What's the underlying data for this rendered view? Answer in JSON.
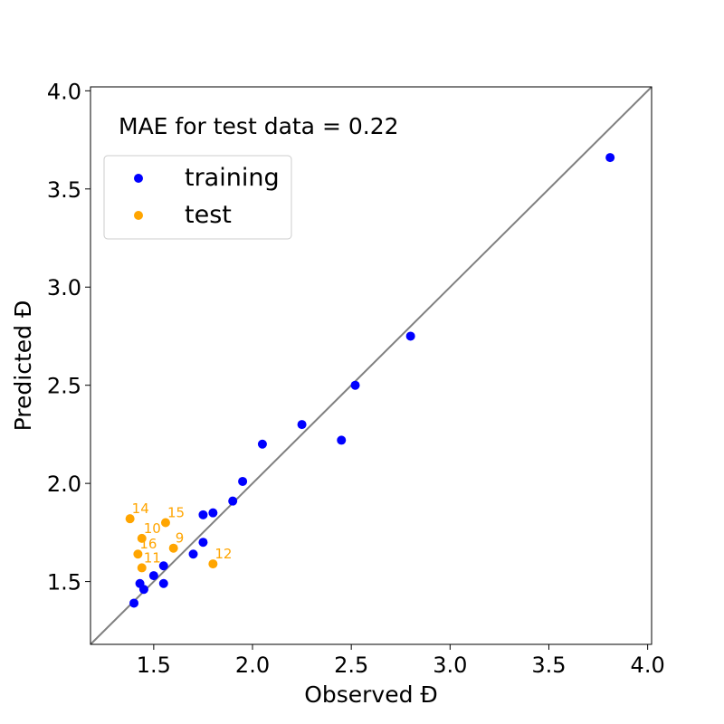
{
  "chart_data": {
    "type": "scatter",
    "xlabel": "Observed Đ",
    "ylabel": "Predicted Đ",
    "xlim": [
      1.18,
      4.02
    ],
    "ylim": [
      1.18,
      4.02
    ],
    "xticks": [
      1.5,
      2.0,
      2.5,
      3.0,
      3.5,
      4.0
    ],
    "yticks": [
      1.5,
      2.0,
      2.5,
      3.0,
      3.5,
      4.0
    ],
    "tick_labels": [
      "1.5",
      "2.0",
      "2.5",
      "3.0",
      "3.5",
      "4.0"
    ],
    "annotation": "MAE for test data = 0.22",
    "identity_line": true,
    "grid": false,
    "legend_position": "upper-left",
    "series": [
      {
        "name": "training",
        "color": "#0000ff",
        "points": [
          [
            1.4,
            1.39
          ],
          [
            1.43,
            1.49
          ],
          [
            1.45,
            1.46
          ],
          [
            1.5,
            1.53
          ],
          [
            1.55,
            1.58
          ],
          [
            1.55,
            1.49
          ],
          [
            1.7,
            1.64
          ],
          [
            1.75,
            1.7
          ],
          [
            1.75,
            1.84
          ],
          [
            1.8,
            1.85
          ],
          [
            1.9,
            1.91
          ],
          [
            1.95,
            2.01
          ],
          [
            2.05,
            2.2
          ],
          [
            2.25,
            2.3
          ],
          [
            2.45,
            2.22
          ],
          [
            2.52,
            2.5
          ],
          [
            2.8,
            2.75
          ],
          [
            3.81,
            3.66
          ]
        ]
      },
      {
        "name": "test",
        "color": "#ffa500",
        "points": [
          {
            "x": 1.38,
            "y": 1.82,
            "label": "14"
          },
          {
            "x": 1.56,
            "y": 1.8,
            "label": "15"
          },
          {
            "x": 1.44,
            "y": 1.72,
            "label": "10"
          },
          {
            "x": 1.6,
            "y": 1.67,
            "label": "9"
          },
          {
            "x": 1.42,
            "y": 1.64,
            "label": "16"
          },
          {
            "x": 1.8,
            "y": 1.59,
            "label": "12"
          },
          {
            "x": 1.44,
            "y": 1.57,
            "label": "11"
          }
        ]
      }
    ]
  }
}
